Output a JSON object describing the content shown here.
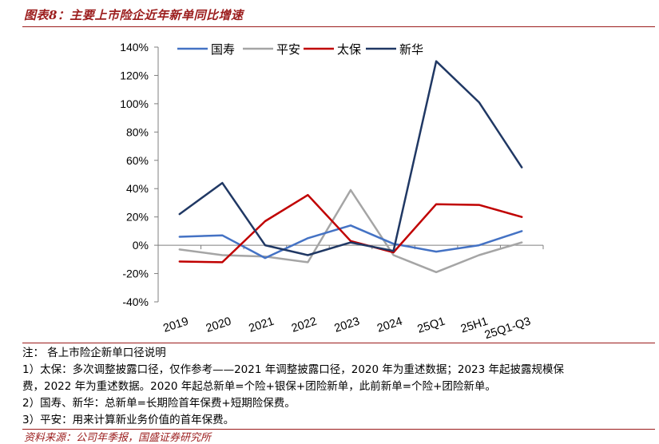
{
  "figure": {
    "title": "图表8：主要上市险企近年新单同比增速",
    "source": "资料来源：公司年季报，国盛证券研究所"
  },
  "notes": [
    "注：  各上市险企新单口径说明",
    "1）太保：多次调整披露口径，仅作参考——2021 年调整披露口径，2020 年为重述数据；2023 年起披露规模保",
    "费，2022 年为重述数据。2020 年起总新单=个险+银保+团险新单，此前新单=个险+团险新单。",
    "2）国寿、新华：总新单=长期险首年保费+短期险保费。",
    "3）平安：用来计算新业务价值的首年保费。"
  ],
  "colors": {
    "国寿": "#4472c4",
    "平安": "#a5a5a5",
    "太保": "#c00000",
    "新华": "#203864",
    "accent": "#9b1c1c"
  },
  "chart_data": {
    "type": "line",
    "title": "",
    "xlabel": "",
    "ylabel": "",
    "categories": [
      "2019",
      "2020",
      "2021",
      "2022",
      "2023",
      "2024",
      "25Q1",
      "25H1",
      "25Q1-Q3"
    ],
    "ylim": [
      -0.4,
      1.4
    ],
    "yticks": [
      -0.4,
      -0.2,
      0,
      0.2,
      0.4,
      0.6,
      0.8,
      1.0,
      1.2,
      1.4
    ],
    "ytick_labels": [
      "-40%",
      "-20%",
      "0%",
      "20%",
      "40%",
      "60%",
      "80%",
      "100%",
      "120%",
      "140%"
    ],
    "legend": "top-center",
    "grid": false,
    "series": [
      {
        "name": "国寿",
        "values": [
          0.06,
          0.07,
          -0.09,
          0.05,
          0.14,
          0.01,
          -0.045,
          0.0,
          0.1
        ]
      },
      {
        "name": "平安",
        "values": [
          -0.03,
          -0.07,
          -0.08,
          -0.12,
          0.39,
          -0.07,
          -0.19,
          -0.07,
          0.02
        ]
      },
      {
        "name": "太保",
        "values": [
          -0.115,
          -0.12,
          0.17,
          0.355,
          0.03,
          -0.05,
          0.29,
          0.285,
          0.2
        ]
      },
      {
        "name": "新华",
        "values": [
          0.22,
          0.44,
          0.0,
          -0.07,
          0.02,
          -0.04,
          1.3,
          1.01,
          0.55
        ]
      }
    ]
  }
}
